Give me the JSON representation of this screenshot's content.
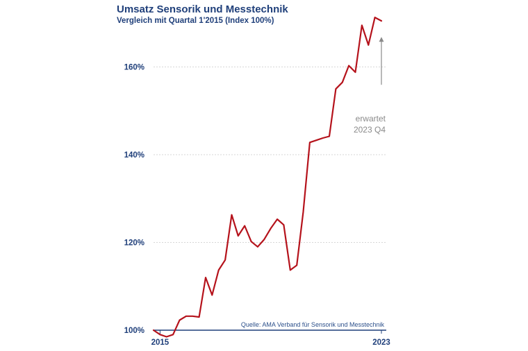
{
  "chart_data": {
    "type": "line",
    "title": "Umsatz Sensorik und Messtechnik",
    "subtitle": "Vergleich mit Quartal 1'2015 (Index 100%)",
    "source": "Quelle: AMA Verband für Sensorik und Messtechnik",
    "ylim": [
      100,
      174
    ],
    "yticks": [
      100,
      120,
      140,
      160
    ],
    "ytick_labels": [
      "100%",
      "120%",
      "140%",
      "160%"
    ],
    "x_range": [
      2015.0,
      2023.75
    ],
    "xticks": [
      {
        "x": 2015.25,
        "label": "2015"
      },
      {
        "x": 2023.75,
        "label": "2023"
      }
    ],
    "grid": true,
    "annotation": {
      "lines": [
        "erwartet",
        "2023 Q4"
      ],
      "x": 2023.75,
      "from_y": 167,
      "to_y": 161
    },
    "series": [
      {
        "color": "#b5121b",
        "x": [
          2015.0,
          2015.25,
          2015.5,
          2015.75,
          2016.0,
          2016.25,
          2016.5,
          2016.75,
          2017.0,
          2017.25,
          2017.5,
          2017.75,
          2018.0,
          2018.25,
          2018.5,
          2018.75,
          2019.0,
          2019.25,
          2019.5,
          2019.75,
          2020.0,
          2020.25,
          2020.5,
          2020.75,
          2021.0,
          2021.25,
          2021.5,
          2021.75,
          2022.0,
          2022.25,
          2022.5,
          2022.75,
          2023.0,
          2023.25,
          2023.5,
          2023.75
        ],
        "values": [
          100.0,
          99.0,
          98.5,
          99.0,
          102.3,
          103.2,
          103.2,
          103.0,
          112.0,
          108.0,
          113.7,
          116.0,
          126.3,
          121.5,
          123.8,
          120.2,
          119.0,
          120.7,
          123.2,
          125.3,
          124.0,
          113.7,
          114.8,
          127.0,
          142.8,
          143.3,
          143.8,
          144.2,
          155.0,
          156.5,
          160.3,
          158.8,
          169.5,
          165.0,
          171.3,
          170.5
        ]
      }
    ]
  }
}
